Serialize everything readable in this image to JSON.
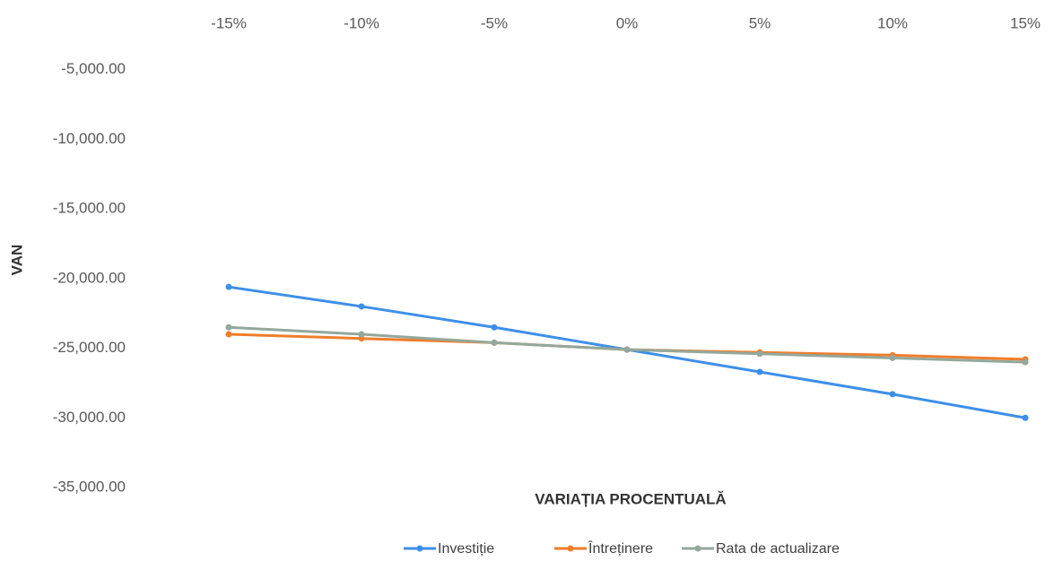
{
  "chart_data": {
    "type": "line",
    "x_label": "VARIAȚIA PROCENTUALĂ",
    "y_label": "VAN",
    "categories": [
      "-15%",
      "-10%",
      "-5%",
      "0%",
      "5%",
      "10%",
      "15%"
    ],
    "series": [
      {
        "name": "Investiție",
        "color": "#3d8fe8",
        "values": [
          -20600,
          -22000,
          -23500,
          -25100,
          -26700,
          -28300,
          -30000
        ]
      },
      {
        "name": "Întreținere",
        "color": "#ef7d2b",
        "values": [
          -24000,
          -24300,
          -24600,
          -25100,
          -25300,
          -25500,
          -25800
        ]
      },
      {
        "name": "Rata de actualizare",
        "color": "#93a89c",
        "values": [
          -23500,
          -24000,
          -24600,
          -25100,
          -25400,
          -25700,
          -26000
        ]
      }
    ],
    "ylim": [
      -35000,
      0
    ],
    "yticks": [
      {
        "value": -5000,
        "label": "-5,000.00"
      },
      {
        "value": -10000,
        "label": "-10,000.00"
      },
      {
        "value": -15000,
        "label": "-15,000.00"
      },
      {
        "value": -20000,
        "label": "-20,000.00"
      },
      {
        "value": -25000,
        "label": "-25,000.00"
      },
      {
        "value": -30000,
        "label": "-30,000.00"
      },
      {
        "value": -35000,
        "label": "-35,000.00"
      }
    ],
    "legend_position": "bottom"
  }
}
